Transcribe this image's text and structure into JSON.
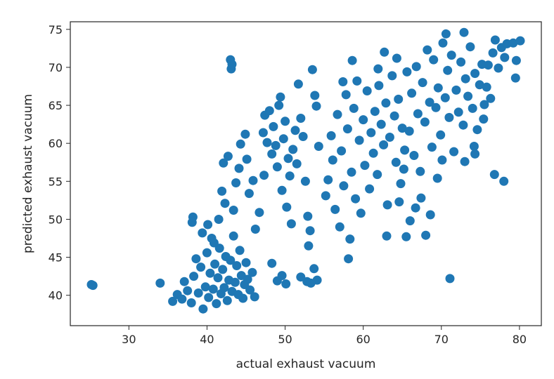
{
  "chart_data": {
    "type": "scatter",
    "title": "",
    "xlabel": "actual exhaust vacuum",
    "ylabel": "predicted exhaust vacuum",
    "xlim": [
      22.5,
      82.8
    ],
    "ylim": [
      36.0,
      76.0
    ],
    "xticks": [
      30,
      40,
      50,
      60,
      70,
      80
    ],
    "yticks": [
      40,
      45,
      50,
      55,
      60,
      65,
      70,
      75
    ],
    "grid": false,
    "legend": "none",
    "marker_color": "#1f77b4",
    "points": [
      [
        25.4,
        41.3
      ],
      [
        25.2,
        41.4
      ],
      [
        34.0,
        41.6
      ],
      [
        35.6,
        39.2
      ],
      [
        36.2,
        40.1
      ],
      [
        36.8,
        39.5
      ],
      [
        37.1,
        41.8
      ],
      [
        37.5,
        40.6
      ],
      [
        38.0,
        39.0
      ],
      [
        38.3,
        42.5
      ],
      [
        38.6,
        44.8
      ],
      [
        38.9,
        40.3
      ],
      [
        39.2,
        43.7
      ],
      [
        39.5,
        38.2
      ],
      [
        39.8,
        41.1
      ],
      [
        40.0,
        45.6
      ],
      [
        40.2,
        39.7
      ],
      [
        40.4,
        42.9
      ],
      [
        40.6,
        47.5
      ],
      [
        40.8,
        40.8
      ],
      [
        41.0,
        44.1
      ],
      [
        41.2,
        38.9
      ],
      [
        41.4,
        42.3
      ],
      [
        41.6,
        46.2
      ],
      [
        41.8,
        40.2
      ],
      [
        42.0,
        43.4
      ],
      [
        42.2,
        41.0
      ],
      [
        42.4,
        45.1
      ],
      [
        42.6,
        39.3
      ],
      [
        42.8,
        42.0
      ],
      [
        43.0,
        44.6
      ],
      [
        43.2,
        40.5
      ],
      [
        43.4,
        47.8
      ],
      [
        43.6,
        41.7
      ],
      [
        43.8,
        43.9
      ],
      [
        44.0,
        40.1
      ],
      [
        44.2,
        45.9
      ],
      [
        44.4,
        42.6
      ],
      [
        44.6,
        39.6
      ],
      [
        44.8,
        41.4
      ],
      [
        45.0,
        44.3
      ],
      [
        45.2,
        42.1
      ],
      [
        45.5,
        40.7
      ],
      [
        45.8,
        43.0
      ],
      [
        46.1,
        39.8
      ],
      [
        38.1,
        49.6
      ],
      [
        38.2,
        50.3
      ],
      [
        39.4,
        48.2
      ],
      [
        40.1,
        49.3
      ],
      [
        40.9,
        46.9
      ],
      [
        41.5,
        50.0
      ],
      [
        41.9,
        53.7
      ],
      [
        42.3,
        52.1
      ],
      [
        42.1,
        57.4
      ],
      [
        42.7,
        58.3
      ],
      [
        43.4,
        51.2
      ],
      [
        43.7,
        54.8
      ],
      [
        44.1,
        56.7
      ],
      [
        44.3,
        59.9
      ],
      [
        44.9,
        61.2
      ],
      [
        45.1,
        57.9
      ],
      [
        45.4,
        53.4
      ],
      [
        45.9,
        55.1
      ],
      [
        46.2,
        48.7
      ],
      [
        46.7,
        50.9
      ],
      [
        47.3,
        55.8
      ],
      [
        43.0,
        71.0
      ],
      [
        43.1,
        69.8
      ],
      [
        43.2,
        70.4
      ],
      [
        47.2,
        61.4
      ],
      [
        47.4,
        63.7
      ],
      [
        47.7,
        60.1
      ],
      [
        48.0,
        64.3
      ],
      [
        48.3,
        58.6
      ],
      [
        48.5,
        62.2
      ],
      [
        48.8,
        59.7
      ],
      [
        49.0,
        56.9
      ],
      [
        49.2,
        65.0
      ],
      [
        49.4,
        66.1
      ],
      [
        49.6,
        53.8
      ],
      [
        49.8,
        60.6
      ],
      [
        50.0,
        62.9
      ],
      [
        50.2,
        51.6
      ],
      [
        50.4,
        58.0
      ],
      [
        50.6,
        55.7
      ],
      [
        50.8,
        49.4
      ],
      [
        51.0,
        59.2
      ],
      [
        51.3,
        61.7
      ],
      [
        51.5,
        57.3
      ],
      [
        51.7,
        67.8
      ],
      [
        52.0,
        63.3
      ],
      [
        52.3,
        60.9
      ],
      [
        52.6,
        55.0
      ],
      [
        52.9,
        50.4
      ],
      [
        53.2,
        48.5
      ],
      [
        53.5,
        69.7
      ],
      [
        53.8,
        66.3
      ],
      [
        54.0,
        64.9
      ],
      [
        54.3,
        59.6
      ],
      [
        53.0,
        46.5
      ],
      [
        48.3,
        44.2
      ],
      [
        49.0,
        41.9
      ],
      [
        49.6,
        42.6
      ],
      [
        50.1,
        41.5
      ],
      [
        52.0,
        42.4
      ],
      [
        52.8,
        41.8
      ],
      [
        53.7,
        43.5
      ],
      [
        54.1,
        42.0
      ],
      [
        53.3,
        41.6
      ],
      [
        55.2,
        53.1
      ],
      [
        55.5,
        55.2
      ],
      [
        55.9,
        61.0
      ],
      [
        56.1,
        57.8
      ],
      [
        56.4,
        51.3
      ],
      [
        56.7,
        63.8
      ],
      [
        57.0,
        49.0
      ],
      [
        57.2,
        59.0
      ],
      [
        57.5,
        54.4
      ],
      [
        57.8,
        66.4
      ],
      [
        58.0,
        61.9
      ],
      [
        58.3,
        47.4
      ],
      [
        58.5,
        56.2
      ],
      [
        58.8,
        64.6
      ],
      [
        59.0,
        52.7
      ],
      [
        59.2,
        68.2
      ],
      [
        59.5,
        60.4
      ],
      [
        59.7,
        50.8
      ],
      [
        60.0,
        63.1
      ],
      [
        60.2,
        57.1
      ],
      [
        60.5,
        66.9
      ],
      [
        60.8,
        54.0
      ],
      [
        61.0,
        61.4
      ],
      [
        61.3,
        58.7
      ],
      [
        61.5,
        64.2
      ],
      [
        61.8,
        55.9
      ],
      [
        62.0,
        67.6
      ],
      [
        62.3,
        62.5
      ],
      [
        62.6,
        59.8
      ],
      [
        62.9,
        65.3
      ],
      [
        63.1,
        51.9
      ],
      [
        63.4,
        60.8
      ],
      [
        63.7,
        68.9
      ],
      [
        64.0,
        63.6
      ],
      [
        64.2,
        57.5
      ],
      [
        64.5,
        65.8
      ],
      [
        64.8,
        54.7
      ],
      [
        65.0,
        62.0
      ],
      [
        65.3,
        59.1
      ],
      [
        65.6,
        69.4
      ],
      [
        58.1,
        44.8
      ],
      [
        58.6,
        70.9
      ],
      [
        57.4,
        68.1
      ],
      [
        63.0,
        47.8
      ],
      [
        65.5,
        47.7
      ],
      [
        64.3,
        71.2
      ],
      [
        61.9,
        69.8
      ],
      [
        62.7,
        72.0
      ],
      [
        65.9,
        61.6
      ],
      [
        66.2,
        66.6
      ],
      [
        66.5,
        58.4
      ],
      [
        66.8,
        70.1
      ],
      [
        67.0,
        63.9
      ],
      [
        67.3,
        56.3
      ],
      [
        67.6,
        68.0
      ],
      [
        67.9,
        62.8
      ],
      [
        68.2,
        72.3
      ],
      [
        68.5,
        65.4
      ],
      [
        68.8,
        59.5
      ],
      [
        69.0,
        71.0
      ],
      [
        69.3,
        64.7
      ],
      [
        69.6,
        67.3
      ],
      [
        69.9,
        61.1
      ],
      [
        70.2,
        73.2
      ],
      [
        70.5,
        66.0
      ],
      [
        70.8,
        69.6
      ],
      [
        71.0,
        63.4
      ],
      [
        71.3,
        71.6
      ],
      [
        71.6,
        58.9
      ],
      [
        71.9,
        67.0
      ],
      [
        72.2,
        64.1
      ],
      [
        72.5,
        70.7
      ],
      [
        72.8,
        62.4
      ],
      [
        73.1,
        68.5
      ],
      [
        73.4,
        66.2
      ],
      [
        73.7,
        72.7
      ],
      [
        74.0,
        64.6
      ],
      [
        74.3,
        69.2
      ],
      [
        74.6,
        61.8
      ],
      [
        74.9,
        67.7
      ],
      [
        75.2,
        70.4
      ],
      [
        75.5,
        65.1
      ],
      [
        66.0,
        49.8
      ],
      [
        66.7,
        51.5
      ],
      [
        67.4,
        52.8
      ],
      [
        68.0,
        47.9
      ],
      [
        68.6,
        50.6
      ],
      [
        69.5,
        55.4
      ],
      [
        70.1,
        57.8
      ],
      [
        65.2,
        56.6
      ],
      [
        64.6,
        52.3
      ],
      [
        70.6,
        74.4
      ],
      [
        72.9,
        74.6
      ],
      [
        71.1,
        42.2
      ],
      [
        74.2,
        59.6
      ],
      [
        74.3,
        58.6
      ],
      [
        73.0,
        57.6
      ],
      [
        75.4,
        63.2
      ],
      [
        76.0,
        70.3
      ],
      [
        76.6,
        71.9
      ],
      [
        76.9,
        73.6
      ],
      [
        77.3,
        69.9
      ],
      [
        77.7,
        72.6
      ],
      [
        78.1,
        71.3
      ],
      [
        78.4,
        73.1
      ],
      [
        79.2,
        73.2
      ],
      [
        79.6,
        70.9
      ],
      [
        80.1,
        73.5
      ],
      [
        79.5,
        68.6
      ],
      [
        76.8,
        55.9
      ],
      [
        78.0,
        55.0
      ],
      [
        76.3,
        65.9
      ],
      [
        75.8,
        67.4
      ]
    ]
  }
}
